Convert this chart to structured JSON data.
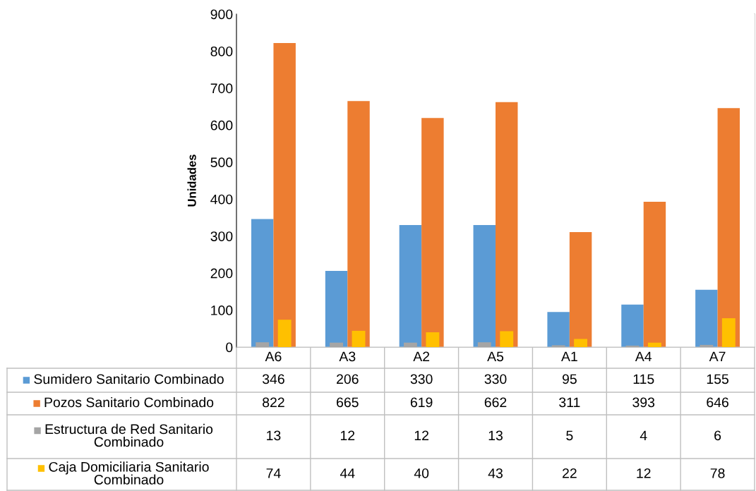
{
  "chart_data": {
    "type": "bar",
    "ylabel": "Unidades",
    "categories": [
      "A6",
      "A3",
      "A2",
      "A5",
      "A1",
      "A4",
      "A7"
    ],
    "series": [
      {
        "name": "Sumidero Sanitario Combinado",
        "color": "#5b9bd5",
        "values": [
          346,
          206,
          330,
          330,
          95,
          115,
          155
        ]
      },
      {
        "name": "Pozos Sanitario Combinado",
        "color": "#ed7d31",
        "values": [
          822,
          665,
          619,
          662,
          311,
          393,
          646
        ]
      },
      {
        "name": "Estructura de Red Sanitario Combinado",
        "color": "#a5a5a5",
        "values": [
          13,
          12,
          12,
          13,
          5,
          4,
          6
        ]
      },
      {
        "name": "Caja Domiciliaria Sanitario Combinado",
        "color": "#ffc000",
        "values": [
          74,
          44,
          40,
          43,
          22,
          12,
          78
        ]
      }
    ],
    "ylim": [
      0,
      900
    ],
    "yticks": [
      0,
      100,
      200,
      300,
      400,
      500,
      600,
      700,
      800,
      900
    ],
    "grid": false,
    "legend": "bottom",
    "data_labels": true
  }
}
